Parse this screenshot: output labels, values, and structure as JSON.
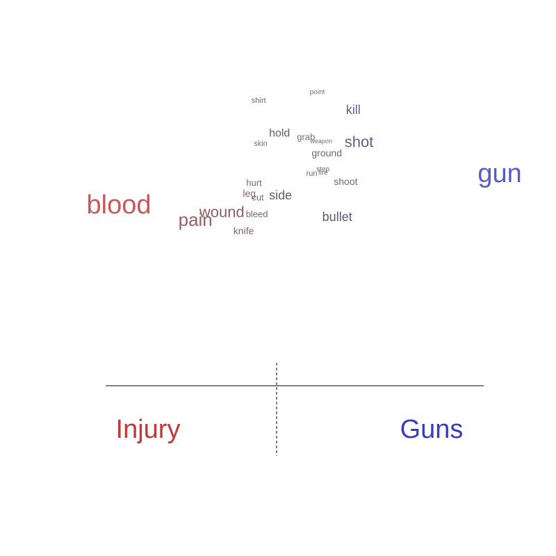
{
  "chart_data": {
    "type": "scatter",
    "title": "",
    "xlabel": "",
    "ylabel": "",
    "grid": false,
    "xlim": [
      -1,
      1
    ],
    "ylim": [
      -1,
      1
    ],
    "pole_labels": {
      "left": {
        "text": "Injury",
        "color": "#c0393b"
      },
      "right": {
        "text": "Guns",
        "color": "#3b3bc0"
      }
    },
    "words": [
      {
        "word": "point",
        "x": 0.12,
        "y": 0.935,
        "size": 10,
        "color": "#7a6a72"
      },
      {
        "word": "shirt",
        "x": -0.19,
        "y": 0.875,
        "size": 11,
        "color": "#82666b"
      },
      {
        "word": "kill",
        "x": 0.31,
        "y": 0.81,
        "size": 18,
        "color": "#635f86"
      },
      {
        "word": "hold",
        "x": -0.08,
        "y": 0.64,
        "size": 16,
        "color": "#665a5e"
      },
      {
        "word": "grab",
        "x": 0.06,
        "y": 0.615,
        "size": 13,
        "color": "#7a6b6e"
      },
      {
        "word": "shot",
        "x": 0.34,
        "y": 0.58,
        "size": 22,
        "color": "#5f5c90"
      },
      {
        "word": "weapon",
        "x": 0.14,
        "y": 0.585,
        "size": 9,
        "color": "#6f6b7f"
      },
      {
        "word": "skin",
        "x": -0.18,
        "y": 0.565,
        "size": 11,
        "color": "#7e6a6c"
      },
      {
        "word": "ground",
        "x": 0.17,
        "y": 0.5,
        "size": 14,
        "color": "#6a6680"
      },
      {
        "word": "gun",
        "x": 1.085,
        "y": 0.35,
        "size": 38,
        "color": "#5b5bc8"
      },
      {
        "word": "step",
        "x": 0.15,
        "y": 0.38,
        "size": 10,
        "color": "#72646f"
      },
      {
        "word": "fire",
        "x": 0.15,
        "y": 0.355,
        "size": 10,
        "color": "#6a6680"
      },
      {
        "word": "run",
        "x": 0.09,
        "y": 0.35,
        "size": 11,
        "color": "#72646f"
      },
      {
        "word": "shoot",
        "x": 0.27,
        "y": 0.295,
        "size": 14,
        "color": "#6a6680"
      },
      {
        "word": "hurt",
        "x": -0.215,
        "y": 0.285,
        "size": 13,
        "color": "#85606a"
      },
      {
        "word": "leg",
        "x": -0.24,
        "y": 0.21,
        "size": 14,
        "color": "#7f6668"
      },
      {
        "word": "side",
        "x": -0.075,
        "y": 0.195,
        "size": 18,
        "color": "#6a5e62"
      },
      {
        "word": "cut",
        "x": -0.195,
        "y": 0.18,
        "size": 13,
        "color": "#7f6668"
      },
      {
        "word": "blood",
        "x": -0.93,
        "y": 0.125,
        "size": 38,
        "color": "#c55a5d"
      },
      {
        "word": "wound",
        "x": -0.385,
        "y": 0.075,
        "size": 22,
        "color": "#8f5e62"
      },
      {
        "word": "bleed",
        "x": -0.2,
        "y": 0.06,
        "size": 13,
        "color": "#7f6668"
      },
      {
        "word": "pain",
        "x": -0.525,
        "y": 0.02,
        "size": 26,
        "color": "#9a5f63"
      },
      {
        "word": "bullet",
        "x": 0.225,
        "y": 0.04,
        "size": 18,
        "color": "#55587e"
      },
      {
        "word": "knife",
        "x": -0.27,
        "y": -0.06,
        "size": 14,
        "color": "#7e6466"
      }
    ]
  }
}
